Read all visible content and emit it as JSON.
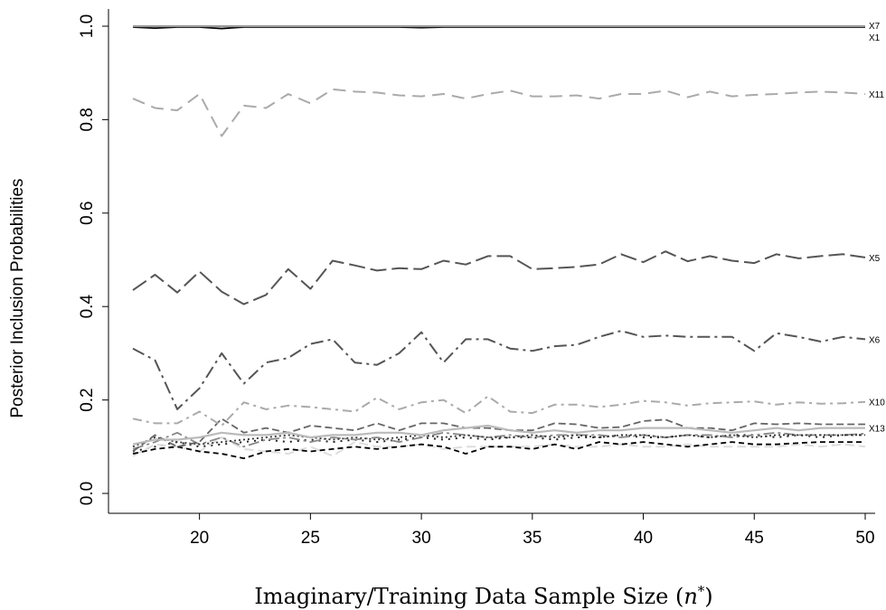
{
  "chart_data": {
    "type": "line",
    "xlabel": "Imaginary/Training Data Sample Size (n*)",
    "ylabel": "Posterior Inclusion Probabilities",
    "xlim": [
      17,
      50
    ],
    "ylim": [
      0.0,
      1.0
    ],
    "x_ticks": [
      20,
      25,
      30,
      35,
      40,
      45,
      50
    ],
    "y_ticks": [
      0.0,
      0.2,
      0.4,
      0.6,
      0.8,
      1.0
    ],
    "x_tick_labels": [
      "20",
      "25",
      "30",
      "35",
      "40",
      "45",
      "50"
    ],
    "y_tick_labels": [
      "0.0",
      "0.2",
      "0.4",
      "0.6",
      "0.8",
      "1.0"
    ],
    "grid": false,
    "legend": "none",
    "x": [
      17,
      18,
      19,
      20,
      21,
      22,
      23,
      24,
      25,
      26,
      27,
      28,
      29,
      30,
      31,
      32,
      33,
      34,
      35,
      36,
      37,
      38,
      39,
      40,
      41,
      42,
      43,
      44,
      45,
      46,
      47,
      48,
      49,
      50
    ],
    "series": [
      {
        "name": "X7",
        "color": "#999999",
        "dash": "",
        "width": 2.2,
        "values": [
          1.0,
          1.0,
          1.0,
          1.0,
          1.0,
          1.0,
          1.0,
          1.0,
          1.0,
          1.0,
          1.0,
          1.0,
          1.0,
          1.0,
          1.0,
          1.0,
          1.0,
          1.0,
          1.0,
          1.0,
          1.0,
          1.0,
          1.0,
          1.0,
          1.0,
          1.0,
          1.0,
          1.0,
          1.0,
          1.0,
          1.0,
          1.0,
          1.0,
          1.0
        ]
      },
      {
        "name": "X1",
        "color": "#000000",
        "dash": "",
        "width": 1.8,
        "values": [
          0.998,
          0.996,
          0.998,
          0.998,
          0.995,
          0.998,
          0.998,
          0.998,
          0.998,
          0.998,
          0.998,
          0.998,
          0.998,
          0.997,
          0.998,
          0.998,
          0.998,
          0.998,
          0.998,
          0.998,
          0.998,
          0.998,
          0.998,
          0.998,
          0.998,
          0.998,
          0.998,
          0.998,
          0.998,
          0.998,
          0.998,
          0.998,
          0.998,
          0.998
        ]
      },
      {
        "name": "X11",
        "color": "#aaaaaa",
        "dash": "14 8",
        "width": 2,
        "values": [
          0.845,
          0.825,
          0.82,
          0.855,
          0.765,
          0.83,
          0.825,
          0.855,
          0.835,
          0.865,
          0.86,
          0.858,
          0.852,
          0.85,
          0.855,
          0.845,
          0.855,
          0.862,
          0.85,
          0.85,
          0.852,
          0.845,
          0.855,
          0.855,
          0.862,
          0.848,
          0.86,
          0.85,
          0.853,
          0.855,
          0.858,
          0.86,
          0.858,
          0.855
        ]
      },
      {
        "name": "X5",
        "color": "#555555",
        "dash": "18 6",
        "width": 2,
        "values": [
          0.435,
          0.468,
          0.43,
          0.475,
          0.432,
          0.405,
          0.425,
          0.48,
          0.438,
          0.498,
          0.488,
          0.477,
          0.482,
          0.48,
          0.498,
          0.49,
          0.508,
          0.508,
          0.48,
          0.482,
          0.485,
          0.49,
          0.512,
          0.495,
          0.518,
          0.497,
          0.508,
          0.498,
          0.493,
          0.512,
          0.503,
          0.508,
          0.512,
          0.505
        ]
      },
      {
        "name": "X6",
        "color": "#555555",
        "dash": "14 5 3 5",
        "width": 2,
        "values": [
          0.31,
          0.285,
          0.18,
          0.225,
          0.3,
          0.235,
          0.28,
          0.29,
          0.32,
          0.33,
          0.28,
          0.275,
          0.3,
          0.345,
          0.28,
          0.33,
          0.33,
          0.31,
          0.305,
          0.315,
          0.318,
          0.335,
          0.348,
          0.335,
          0.338,
          0.335,
          0.335,
          0.335,
          0.305,
          0.343,
          0.335,
          0.325,
          0.335,
          0.33
        ]
      },
      {
        "name": "X10",
        "color": "#aaaaaa",
        "dash": "10 5 3 5",
        "width": 2,
        "values": [
          0.16,
          0.15,
          0.15,
          0.175,
          0.145,
          0.195,
          0.18,
          0.188,
          0.185,
          0.18,
          0.175,
          0.205,
          0.18,
          0.195,
          0.2,
          0.172,
          0.208,
          0.175,
          0.172,
          0.19,
          0.19,
          0.185,
          0.19,
          0.198,
          0.195,
          0.188,
          0.193,
          0.195,
          0.197,
          0.19,
          0.195,
          0.192,
          0.193,
          0.196
        ]
      },
      {
        "name": "X13",
        "color": "#bbbbbb",
        "dash": "",
        "width": 2.2,
        "values": [
          0.105,
          0.115,
          0.115,
          0.12,
          0.13,
          0.125,
          0.125,
          0.13,
          0.12,
          0.125,
          0.125,
          0.13,
          0.13,
          0.125,
          0.135,
          0.14,
          0.145,
          0.135,
          0.13,
          0.135,
          0.13,
          0.135,
          0.135,
          0.14,
          0.14,
          0.14,
          0.135,
          0.13,
          0.135,
          0.14,
          0.135,
          0.14,
          0.14,
          0.14
        ]
      },
      {
        "name": "",
        "color": "#666666",
        "dash": "8 4",
        "width": 1.8,
        "values": [
          0.09,
          0.125,
          0.1,
          0.11,
          0.16,
          0.13,
          0.14,
          0.13,
          0.145,
          0.14,
          0.135,
          0.15,
          0.135,
          0.15,
          0.15,
          0.14,
          0.14,
          0.135,
          0.135,
          0.15,
          0.148,
          0.14,
          0.142,
          0.155,
          0.158,
          0.14,
          0.14,
          0.135,
          0.15,
          0.148,
          0.15,
          0.148,
          0.148,
          0.148
        ]
      },
      {
        "name": "",
        "color": "#000000",
        "dash": "6 4",
        "width": 1.8,
        "values": [
          0.085,
          0.095,
          0.1,
          0.09,
          0.085,
          0.075,
          0.09,
          0.095,
          0.09,
          0.095,
          0.1,
          0.095,
          0.1,
          0.105,
          0.1,
          0.085,
          0.1,
          0.1,
          0.095,
          0.105,
          0.095,
          0.11,
          0.105,
          0.11,
          0.105,
          0.1,
          0.105,
          0.11,
          0.105,
          0.105,
          0.108,
          0.11,
          0.11,
          0.11
        ]
      },
      {
        "name": "",
        "color": "#333333",
        "dash": "2 3",
        "width": 1.8,
        "values": [
          0.1,
          0.12,
          0.11,
          0.105,
          0.11,
          0.115,
          0.12,
          0.125,
          0.12,
          0.115,
          0.12,
          0.115,
          0.12,
          0.125,
          0.12,
          0.125,
          0.12,
          0.12,
          0.125,
          0.12,
          0.125,
          0.12,
          0.125,
          0.125,
          0.12,
          0.125,
          0.12,
          0.125,
          0.12,
          0.125,
          0.125,
          0.125,
          0.125,
          0.125
        ]
      },
      {
        "name": "",
        "color": "#888888",
        "dash": "12 4 3 4",
        "width": 1.8,
        "values": [
          0.095,
          0.11,
          0.13,
          0.105,
          0.12,
          0.1,
          0.115,
          0.12,
          0.11,
          0.12,
          0.115,
          0.12,
          0.11,
          0.12,
          0.13,
          0.125,
          0.12,
          0.125,
          0.12,
          0.125,
          0.125,
          0.125,
          0.12,
          0.125,
          0.12,
          0.125,
          0.125,
          0.12,
          0.125,
          0.13,
          0.125,
          0.125,
          0.125,
          0.128
        ]
      },
      {
        "name": "",
        "color": "#dddddd",
        "dash": "10 5",
        "width": 2,
        "values": [
          0.08,
          0.105,
          0.1,
          0.09,
          0.12,
          0.095,
          0.09,
          0.085,
          0.1,
          0.08,
          0.11,
          0.1,
          0.1,
          0.105,
          0.095,
          0.1,
          0.1,
          0.1,
          0.1,
          0.105,
          0.1,
          0.1,
          0.105,
          0.1,
          0.1,
          0.105,
          0.1,
          0.1,
          0.1,
          0.1,
          0.105,
          0.1,
          0.105,
          0.1
        ]
      },
      {
        "name": "",
        "color": "#222222",
        "dash": "2 6",
        "width": 2,
        "values": [
          0.09,
          0.1,
          0.11,
          0.1,
          0.105,
          0.11,
          0.115,
          0.11,
          0.115,
          0.11,
          0.115,
          0.11,
          0.115,
          0.12,
          0.115,
          0.12,
          0.115,
          0.12,
          0.12,
          0.115,
          0.12,
          0.12,
          0.125,
          0.12,
          0.12,
          0.125,
          0.12,
          0.125,
          0.125,
          0.12,
          0.125,
          0.12,
          0.125,
          0.125
        ]
      }
    ]
  }
}
